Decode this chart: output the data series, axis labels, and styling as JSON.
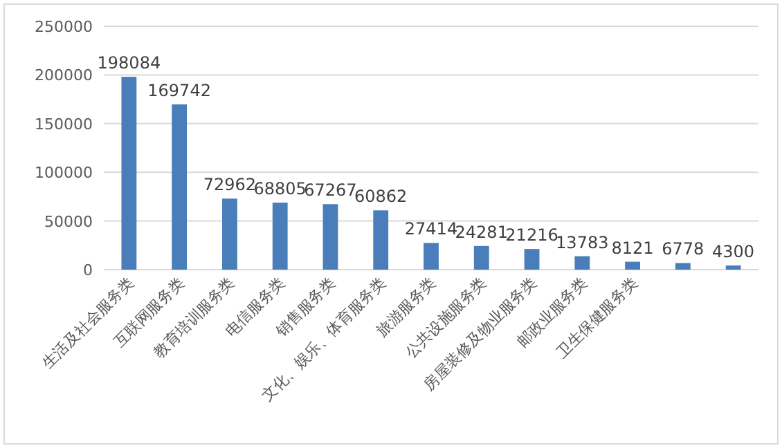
{
  "chart_data": {
    "type": "bar",
    "categories": [
      "生活及社会服务类",
      "互联网服务类",
      "教育培训服务类",
      "电信服务类",
      "销售服务类",
      "文化、娱乐、体育服务类",
      "旅游服务类",
      "公共设施服务类",
      "房屋装修及物业服务类",
      "邮政业服务类",
      "卫生保健服务类",
      null,
      null
    ],
    "values": [
      198084,
      169742,
      72962,
      68805,
      67267,
      60862,
      27414,
      24281,
      21216,
      13783,
      8121,
      6778,
      4300
    ],
    "color": "#4a7ebb",
    "ylim": [
      0,
      250000
    ],
    "yticks": [
      0,
      50000,
      100000,
      150000,
      200000,
      250000
    ],
    "grid": "y",
    "data_labels": true
  }
}
